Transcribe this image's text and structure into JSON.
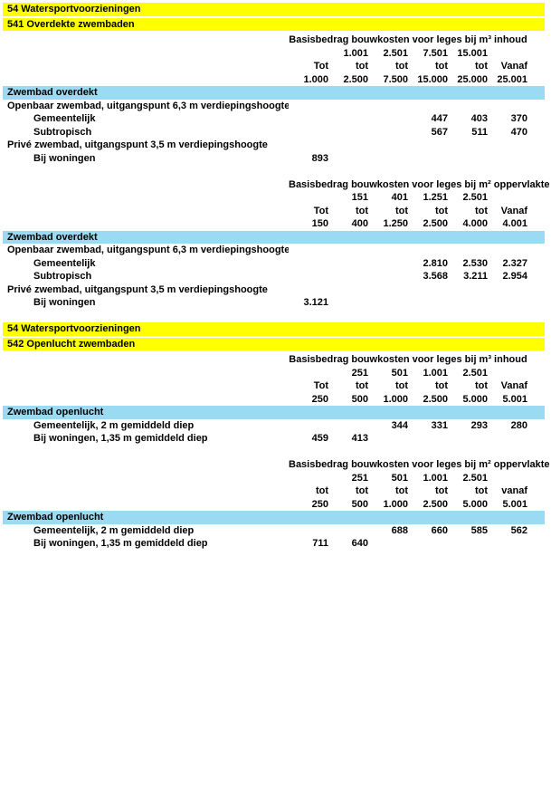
{
  "colors": {
    "page_bg": "#ffffff",
    "banner_bg": "#ffff00",
    "subheader_bg": "#9bdaf3",
    "text": "#000000"
  },
  "blocks": [
    {
      "type": "banner",
      "lines": [
        "54 Watersportvoorzieningen",
        "541 Overdekte zwembaden"
      ]
    },
    {
      "type": "table",
      "group_header": "Basisbedrag bouwkosten voor leges bij m³ inhoud",
      "header_rows": [
        [
          "",
          "1.001",
          "2.501",
          "7.501",
          "15.001",
          ""
        ],
        [
          "Tot",
          "tot",
          "tot",
          "tot",
          "tot",
          "Vanaf"
        ],
        [
          "1.000",
          "2.500",
          "7.500",
          "15.000",
          "25.000",
          "25.001"
        ]
      ],
      "subheader": "Zwembad overdekt",
      "rows": [
        {
          "label": "Openbaar zwembad, uitgangspunt 6,3 m verdiepingshoogte",
          "indent": 0,
          "values": [
            "",
            "",
            "",
            "",
            "",
            ""
          ]
        },
        {
          "label": "Gemeentelijk",
          "indent": 1,
          "values": [
            "",
            "",
            "",
            "447",
            "403",
            "370"
          ]
        },
        {
          "label": "Subtropisch",
          "indent": 1,
          "values": [
            "",
            "",
            "",
            "567",
            "511",
            "470"
          ]
        },
        {
          "label": "Privé zwembad, uitgangspunt 3,5 m verdiepingshoogte",
          "indent": 0,
          "values": [
            "",
            "",
            "",
            "",
            "",
            ""
          ]
        },
        {
          "label": "Bij woningen",
          "indent": 1,
          "values": [
            "893",
            "",
            "",
            "",
            "",
            ""
          ]
        }
      ]
    },
    {
      "type": "table",
      "group_header": "Basisbedrag bouwkosten voor leges bij m² oppervlakte",
      "header_rows": [
        [
          "",
          "151",
          "401",
          "1.251",
          "2.501",
          ""
        ],
        [
          "Tot",
          "tot",
          "tot",
          "tot",
          "tot",
          "Vanaf"
        ],
        [
          "150",
          "400",
          "1.250",
          "2.500",
          "4.000",
          "4.001"
        ]
      ],
      "subheader": "Zwembad overdekt",
      "rows": [
        {
          "label": "Openbaar zwembad, uitgangspunt 6,3 m verdiepingshoogte",
          "indent": 0,
          "values": [
            "",
            "",
            "",
            "",
            "",
            ""
          ]
        },
        {
          "label": "Gemeentelijk",
          "indent": 1,
          "values": [
            "",
            "",
            "",
            "2.810",
            "2.530",
            "2.327"
          ]
        },
        {
          "label": "Subtropisch",
          "indent": 1,
          "values": [
            "",
            "",
            "",
            "3.568",
            "3.211",
            "2.954"
          ]
        },
        {
          "label": "Privé zwembad, uitgangspunt 3,5 m verdiepingshoogte",
          "indent": 0,
          "values": [
            "",
            "",
            "",
            "",
            "",
            ""
          ]
        },
        {
          "label": "Bij woningen",
          "indent": 1,
          "values": [
            "3.121",
            "",
            "",
            "",
            "",
            ""
          ]
        }
      ]
    },
    {
      "type": "banner",
      "lines": [
        "54 Watersportvoorzieningen",
        "542 Openlucht zwembaden"
      ]
    },
    {
      "type": "table",
      "group_header": "Basisbedrag bouwkosten voor leges bij m³ inhoud",
      "header_rows": [
        [
          "",
          "251",
          "501",
          "1.001",
          "2.501",
          ""
        ],
        [
          "Tot",
          "tot",
          "tot",
          "tot",
          "tot",
          "Vanaf"
        ],
        [
          "250",
          "500",
          "1.000",
          "2.500",
          "5.000",
          "5.001"
        ]
      ],
      "subheader": "Zwembad openlucht",
      "rows": [
        {
          "label": "Gemeentelijk, 2 m gemiddeld diep",
          "indent": 1,
          "values": [
            "",
            "",
            "344",
            "331",
            "293",
            "280"
          ]
        },
        {
          "label": "Bij woningen, 1,35 m gemiddeld diep",
          "indent": 1,
          "values": [
            "459",
            "413",
            "",
            "",
            "",
            ""
          ]
        }
      ]
    },
    {
      "type": "table",
      "group_header": "Basisbedrag bouwkosten voor leges bij m² oppervlakte",
      "header_rows": [
        [
          "",
          "251",
          "501",
          "1.001",
          "2.501",
          ""
        ],
        [
          "tot",
          "tot",
          "tot",
          "tot",
          "tot",
          "vanaf"
        ],
        [
          "250",
          "500",
          "1.000",
          "2.500",
          "5.000",
          "5.001"
        ]
      ],
      "subheader": "Zwembad openlucht",
      "rows": [
        {
          "label": "Gemeentelijk, 2 m gemiddeld diep",
          "indent": 1,
          "values": [
            "",
            "",
            "688",
            "660",
            "585",
            "562"
          ]
        },
        {
          "label": "Bij woningen, 1,35 m gemiddeld diep",
          "indent": 1,
          "values": [
            "711",
            "640",
            "",
            "",
            "",
            ""
          ]
        }
      ]
    }
  ]
}
